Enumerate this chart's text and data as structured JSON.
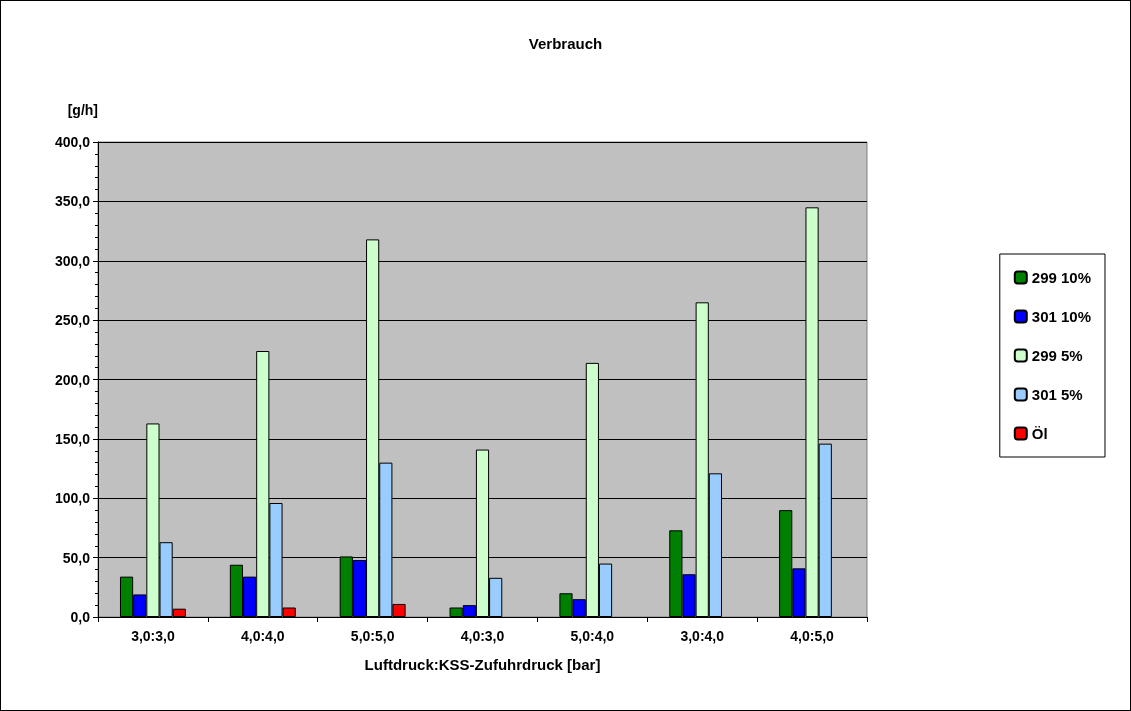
{
  "chart_data": {
    "type": "bar",
    "title": "Verbrauch",
    "xlabel": "Luftdruck:KSS-Zufuhrdruck [bar]",
    "ylabel": "[g/h]",
    "categories": [
      "3,0:3,0",
      "4,0:4,0",
      "5,0:5,0",
      "4,0:3,0",
      "5,0:4,0",
      "3,0:4,0",
      "4,0:5,0"
    ],
    "series": [
      {
        "name": "299 10%",
        "color": "#008000",
        "values": [
          34,
          44,
          51,
          8,
          20,
          73,
          90
        ]
      },
      {
        "name": "301 10%",
        "color": "#0000ff",
        "values": [
          19,
          34,
          48,
          10,
          15,
          36,
          41
        ]
      },
      {
        "name": "299 5%",
        "color": "#ccffcc",
        "values": [
          163,
          224,
          318,
          141,
          214,
          265,
          345
        ]
      },
      {
        "name": "301 5%",
        "color": "#99ccff",
        "values": [
          63,
          96,
          130,
          33,
          45,
          121,
          146
        ]
      },
      {
        "name": "Öl",
        "color": "#ff0000",
        "values": [
          7,
          8,
          11,
          null,
          null,
          null,
          null
        ]
      }
    ],
    "ylim": [
      0,
      400
    ],
    "yticks": [
      {
        "value": 0,
        "label": "0,0"
      },
      {
        "value": 50,
        "label": "50,0"
      },
      {
        "value": 100,
        "label": "100,0"
      },
      {
        "value": 150,
        "label": "150,0"
      },
      {
        "value": 200,
        "label": "200,0"
      },
      {
        "value": 250,
        "label": "250,0"
      },
      {
        "value": 300,
        "label": "300,0"
      },
      {
        "value": 350,
        "label": "350,0"
      },
      {
        "value": 400,
        "label": "400,0"
      }
    ],
    "grid": "y",
    "legend": "right"
  }
}
